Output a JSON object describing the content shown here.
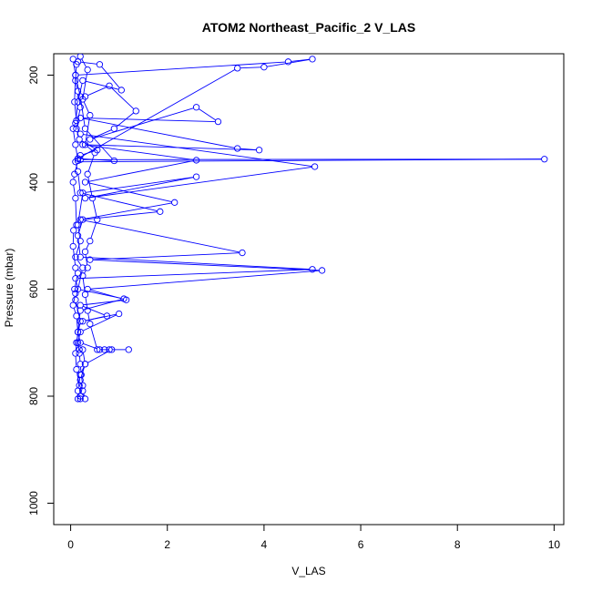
{
  "chart_data": {
    "type": "line",
    "title": "ATOM2 Northeast_Pacific_2 V_LAS",
    "xlabel": "V_LAS",
    "ylabel": "Pressure (mbar)",
    "xlim": [
      -0.35,
      10.2
    ],
    "ylim": [
      1040,
      160
    ],
    "y_reversed": true,
    "x_ticks": [
      0,
      2,
      4,
      6,
      8,
      10
    ],
    "y_ticks": [
      200,
      400,
      600,
      800,
      1000
    ],
    "grid": false,
    "legend": "none",
    "series_color": "#0000ff",
    "series": [
      {
        "x": [
          0.12,
          0.1,
          0.15,
          0.2,
          0.12,
          0.18,
          0.55,
          0.2,
          0.15,
          3.45,
          4.0,
          5.0,
          4.5,
          0.1,
          0.2,
          0.3,
          0.9,
          0.15,
          0.2,
          9.8,
          0.1,
          0.15,
          0.2,
          1.85,
          0.25,
          0.15,
          0.2,
          5.0,
          0.1,
          0.15,
          1.1,
          0.2,
          0.15,
          0.1,
          0.12,
          0.18,
          0.2,
          0.15
        ],
        "y": [
          180,
          210,
          230,
          260,
          300,
          320,
          340,
          350,
          356,
          187,
          185,
          170,
          175,
          200,
          240,
          300,
          360,
          356,
          358,
          357,
          362,
          380,
          420,
          455,
          470,
          500,
          540,
          563,
          580,
          600,
          618,
          640,
          680,
          720,
          750,
          780,
          800,
          805
        ]
      },
      {
        "x": [
          0.3,
          0.8,
          1.35,
          0.9,
          0.4,
          2.6,
          3.05,
          0.2,
          3.45,
          3.9,
          0.25,
          2.6,
          0.3,
          2.15,
          0.2,
          3.55,
          0.4,
          5.2,
          0.35,
          1.15,
          0.2,
          0.75,
          0.25,
          1.0,
          0.2,
          0.15,
          0.18,
          0.2,
          0.22,
          0.25,
          0.2
        ],
        "y": [
          240,
          220,
          267,
          300,
          320,
          260,
          287,
          280,
          337,
          340,
          330,
          359,
          400,
          438,
          470,
          532,
          545,
          565,
          600,
          620,
          630,
          650,
          660,
          646,
          680,
          700,
          720,
          740,
          760,
          780,
          800
        ]
      },
      {
        "x": [
          0.15,
          0.6,
          1.05,
          0.25,
          0.15,
          0.1,
          0.2,
          5.05,
          0.3,
          2.6,
          0.25,
          0.15,
          0.2,
          0.1,
          0.25,
          0.1,
          0.2,
          0.12,
          0.18,
          0.25,
          0.3,
          0.2,
          0.15,
          0.2
        ],
        "y": [
          175,
          180,
          228,
          210,
          250,
          290,
          310,
          371,
          430,
          390,
          420,
          480,
          510,
          540,
          560,
          620,
          660,
          700,
          713,
          713,
          740,
          760,
          790,
          805
        ]
      },
      {
        "x": [
          0.05,
          0.1,
          0.08,
          0.12,
          0.05,
          0.1,
          0.15,
          0.08,
          0.05,
          0.1,
          0.12,
          0.06,
          0.05,
          0.1,
          0.15,
          0.08,
          0.1,
          0.05,
          0.12,
          0.15,
          0.2,
          0.6,
          0.8,
          1.2
        ],
        "y": [
          170,
          200,
          250,
          285,
          300,
          330,
          360,
          385,
          400,
          430,
          480,
          490,
          520,
          560,
          570,
          600,
          608,
          630,
          650,
          680,
          700,
          713,
          713,
          713
        ]
      },
      {
        "x": [
          0.2,
          0.35,
          0.25,
          0.4,
          0.3,
          0.5,
          0.35,
          0.45,
          0.55,
          0.4,
          0.3,
          0.35,
          0.25,
          0.3,
          0.35,
          0.4,
          0.55,
          0.7,
          0.85,
          0.3,
          0.2,
          0.25,
          0.3
        ],
        "y": [
          165,
          190,
          245,
          275,
          330,
          345,
          385,
          430,
          470,
          510,
          530,
          560,
          575,
          610,
          640,
          665,
          713,
          713,
          713,
          740,
          770,
          790,
          805
        ]
      }
    ],
    "x_axis": "V_LAS",
    "y_axis": "Pressure (mbar)"
  }
}
